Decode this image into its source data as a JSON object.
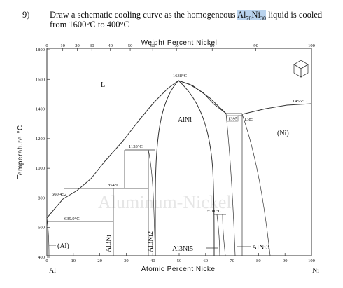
{
  "question": {
    "number": "9)",
    "text_before": "Draw a schematic cooling curve as the homogeneous ",
    "highlight": {
      "al": "Al",
      "al_sub": "70",
      "ni": "Ni",
      "ni_sub": "30"
    },
    "text_after": " liquid is cooled",
    "line2": "from 1600°C to 400°C"
  },
  "diagram": {
    "top_axis_title": "Weight Percent Nickel",
    "bottom_axis_title": "Atomic Percent Nickel",
    "y_axis_title": "Temperature °C",
    "left_element": "Al",
    "right_element": "Ni",
    "top_ticks": [
      "0",
      "10",
      "20",
      "30",
      "40",
      "50",
      "60",
      "70",
      "80",
      "90",
      "100"
    ],
    "bottom_ticks": [
      "0",
      "10",
      "20",
      "30",
      "40",
      "50",
      "60",
      "70",
      "80",
      "90",
      "100"
    ],
    "y_ticks": [
      "400",
      "600",
      "800",
      "1000",
      "1200",
      "1400",
      "1600",
      "1800"
    ],
    "phases": {
      "liquid": "L",
      "alni": "AlNi",
      "ni": "(Ni)",
      "al": "(Al)",
      "al3ni": "Al3Ni",
      "al3ni2": "Al3Ni2",
      "al3ni5": "Al3Ni5",
      "alni3": "AlNi3"
    },
    "temperatures": {
      "t1638": "1638°C",
      "t1455": "1455°C",
      "t1395": "1395",
      "t1385": "1385",
      "t1133": "1133°C",
      "t854": "854°C",
      "t660": "660.452",
      "t639": "639.9°C",
      "t700": "~700°C"
    },
    "watermark": "Aluminum-Nickel"
  }
}
